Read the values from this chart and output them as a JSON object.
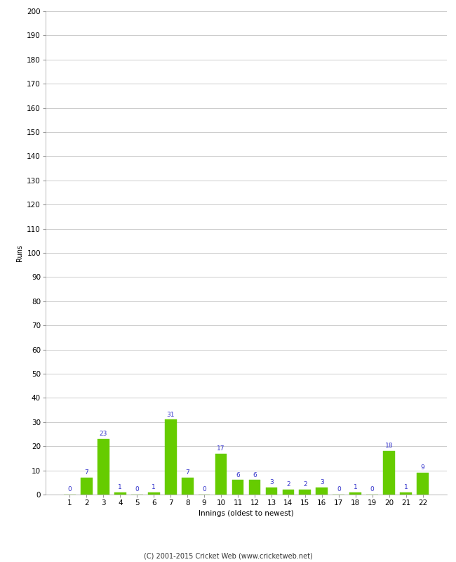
{
  "innings": [
    1,
    2,
    3,
    4,
    5,
    6,
    7,
    8,
    9,
    10,
    11,
    12,
    13,
    14,
    15,
    16,
    17,
    18,
    19,
    20,
    21,
    22
  ],
  "runs": [
    0,
    7,
    23,
    1,
    0,
    1,
    31,
    7,
    0,
    17,
    6,
    6,
    3,
    2,
    2,
    3,
    0,
    1,
    0,
    18,
    1,
    9
  ],
  "bar_color": "#66cc00",
  "bar_edge_color": "#66cc00",
  "label_color": "#3333cc",
  "ylabel": "Runs",
  "xlabel": "Innings (oldest to newest)",
  "ylim": [
    0,
    200
  ],
  "yticks": [
    0,
    10,
    20,
    30,
    40,
    50,
    60,
    70,
    80,
    90,
    100,
    110,
    120,
    130,
    140,
    150,
    160,
    170,
    180,
    190,
    200
  ],
  "footer": "(C) 2001-2015 Cricket Web (www.cricketweb.net)",
  "background_color": "#ffffff",
  "grid_color": "#cccccc",
  "label_fontsize": 6.5,
  "axis_fontsize": 7.5,
  "ylabel_fontsize": 7,
  "xlabel_fontsize": 7.5,
  "footer_fontsize": 7
}
